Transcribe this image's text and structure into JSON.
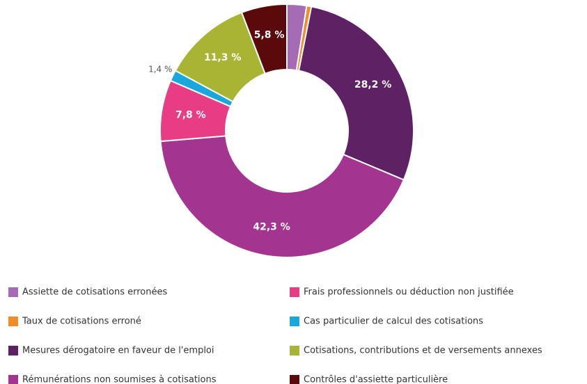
{
  "chart_data": {
    "type": "donut",
    "series": [
      {
        "name": "Assiette de cotisations erronées",
        "color": "#a56cb5"
      },
      {
        "name": "Taux de cotisations erroné",
        "color": "#f28c28"
      },
      {
        "name": "Mesures dérogatoire en faveur de l'emploi",
        "color": "#5e2163"
      },
      {
        "name": "Rémunérations non soumises à cotisations",
        "color": "#a3348f"
      },
      {
        "name": "Frais professionnels ou déduction non justifiée",
        "color": "#e83d84"
      },
      {
        "name": "Cas particulier de calcul des cotisations",
        "color": "#1aa7dc"
      },
      {
        "name": "Cotisations, contributions et de versements annexes",
        "color": "#a8b534"
      },
      {
        "name": "Contrôles d'assiette particulière",
        "color": "#5a0a0a"
      }
    ],
    "values": [
      2.5,
      0.6,
      28.2,
      42.3,
      7.8,
      1.4,
      11.3,
      5.8
    ],
    "value_labels": [
      "2,5 %",
      "0,6 %",
      "28,2 %",
      "42,3 %",
      "7,8 %",
      "1,4 %",
      "11,3 %",
      "5,8 %"
    ]
  }
}
